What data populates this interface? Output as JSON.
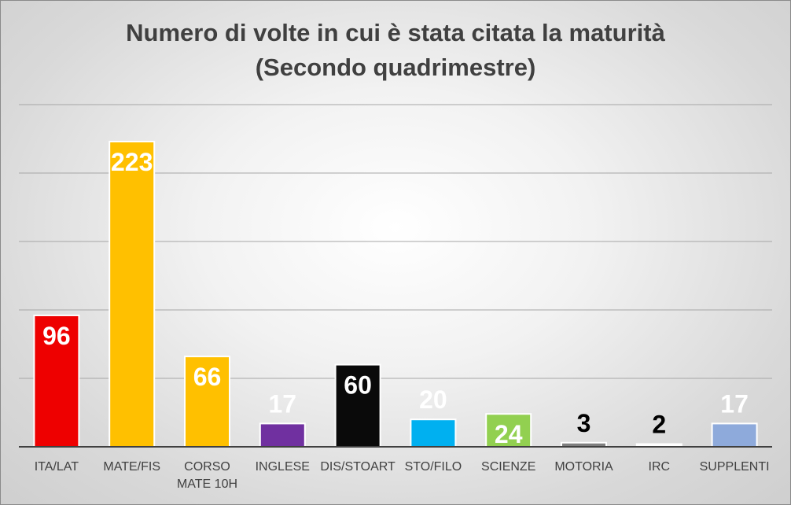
{
  "chart_data": {
    "type": "bar",
    "title_lines": [
      "Numero di volte in cui è stata citata la maturità",
      "(Secondo quadrimestre)"
    ],
    "categories": [
      [
        "ITA/LAT"
      ],
      [
        "MATE/FIS"
      ],
      [
        "CORSO",
        "MATE 10H"
      ],
      [
        "INGLESE"
      ],
      [
        "DIS/STOART"
      ],
      [
        "STO/FILO"
      ],
      [
        "SCIENZE"
      ],
      [
        "MOTORIA"
      ],
      [
        "IRC"
      ],
      [
        "SUPPLENTI"
      ]
    ],
    "values": [
      96,
      223,
      66,
      17,
      60,
      20,
      24,
      3,
      2,
      17
    ],
    "bar_colors": [
      "#ee0000",
      "#ffc000",
      "#ffc000",
      "#7030a0",
      "#0a0a0a",
      "#00b0f0",
      "#92d050",
      "#7f7f7f",
      "#ffffff",
      "#8eaadb"
    ],
    "label_colors": [
      "#ffffff",
      "#ffffff",
      "#ffffff",
      "#ffffff",
      "#ffffff",
      "#ffffff",
      "#ffffff",
      "#000000",
      "#000000",
      "#ffffff"
    ],
    "ylim": [
      0,
      250
    ],
    "grid": true,
    "legend": "none"
  }
}
